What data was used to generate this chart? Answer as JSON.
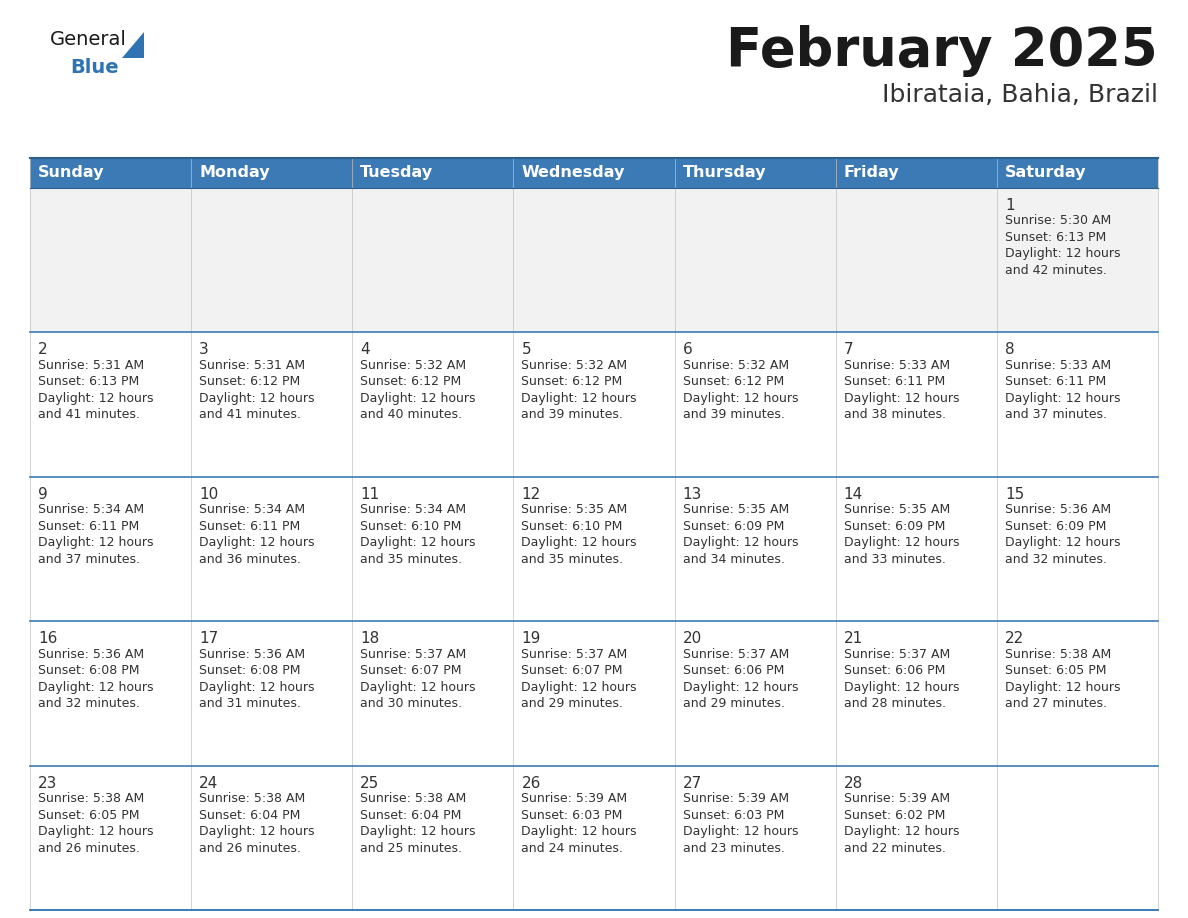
{
  "title": "February 2025",
  "subtitle": "Ibirataia, Bahia, Brazil",
  "header_bg": "#3c7ab5",
  "header_text_color": "#ffffff",
  "cell_bg_normal": "#ffffff",
  "cell_bg_first_row": "#f2f2f2",
  "border_color": "#2e5f8a",
  "row_divider_color": "#3c7ab5",
  "day_headers": [
    "Sunday",
    "Monday",
    "Tuesday",
    "Wednesday",
    "Thursday",
    "Friday",
    "Saturday"
  ],
  "days": [
    {
      "day": 1,
      "col": 6,
      "row": 0,
      "sunrise": "5:30 AM",
      "sunset": "6:13 PM",
      "minutes": "42 minutes."
    },
    {
      "day": 2,
      "col": 0,
      "row": 1,
      "sunrise": "5:31 AM",
      "sunset": "6:13 PM",
      "minutes": "41 minutes."
    },
    {
      "day": 3,
      "col": 1,
      "row": 1,
      "sunrise": "5:31 AM",
      "sunset": "6:12 PM",
      "minutes": "41 minutes."
    },
    {
      "day": 4,
      "col": 2,
      "row": 1,
      "sunrise": "5:32 AM",
      "sunset": "6:12 PM",
      "minutes": "40 minutes."
    },
    {
      "day": 5,
      "col": 3,
      "row": 1,
      "sunrise": "5:32 AM",
      "sunset": "6:12 PM",
      "minutes": "39 minutes."
    },
    {
      "day": 6,
      "col": 4,
      "row": 1,
      "sunrise": "5:32 AM",
      "sunset": "6:12 PM",
      "minutes": "39 minutes."
    },
    {
      "day": 7,
      "col": 5,
      "row": 1,
      "sunrise": "5:33 AM",
      "sunset": "6:11 PM",
      "minutes": "38 minutes."
    },
    {
      "day": 8,
      "col": 6,
      "row": 1,
      "sunrise": "5:33 AM",
      "sunset": "6:11 PM",
      "minutes": "37 minutes."
    },
    {
      "day": 9,
      "col": 0,
      "row": 2,
      "sunrise": "5:34 AM",
      "sunset": "6:11 PM",
      "minutes": "37 minutes."
    },
    {
      "day": 10,
      "col": 1,
      "row": 2,
      "sunrise": "5:34 AM",
      "sunset": "6:11 PM",
      "minutes": "36 minutes."
    },
    {
      "day": 11,
      "col": 2,
      "row": 2,
      "sunrise": "5:34 AM",
      "sunset": "6:10 PM",
      "minutes": "35 minutes."
    },
    {
      "day": 12,
      "col": 3,
      "row": 2,
      "sunrise": "5:35 AM",
      "sunset": "6:10 PM",
      "minutes": "35 minutes."
    },
    {
      "day": 13,
      "col": 4,
      "row": 2,
      "sunrise": "5:35 AM",
      "sunset": "6:09 PM",
      "minutes": "34 minutes."
    },
    {
      "day": 14,
      "col": 5,
      "row": 2,
      "sunrise": "5:35 AM",
      "sunset": "6:09 PM",
      "minutes": "33 minutes."
    },
    {
      "day": 15,
      "col": 6,
      "row": 2,
      "sunrise": "5:36 AM",
      "sunset": "6:09 PM",
      "minutes": "32 minutes."
    },
    {
      "day": 16,
      "col": 0,
      "row": 3,
      "sunrise": "5:36 AM",
      "sunset": "6:08 PM",
      "minutes": "32 minutes."
    },
    {
      "day": 17,
      "col": 1,
      "row": 3,
      "sunrise": "5:36 AM",
      "sunset": "6:08 PM",
      "minutes": "31 minutes."
    },
    {
      "day": 18,
      "col": 2,
      "row": 3,
      "sunrise": "5:37 AM",
      "sunset": "6:07 PM",
      "minutes": "30 minutes."
    },
    {
      "day": 19,
      "col": 3,
      "row": 3,
      "sunrise": "5:37 AM",
      "sunset": "6:07 PM",
      "minutes": "29 minutes."
    },
    {
      "day": 20,
      "col": 4,
      "row": 3,
      "sunrise": "5:37 AM",
      "sunset": "6:06 PM",
      "minutes": "29 minutes."
    },
    {
      "day": 21,
      "col": 5,
      "row": 3,
      "sunrise": "5:37 AM",
      "sunset": "6:06 PM",
      "minutes": "28 minutes."
    },
    {
      "day": 22,
      "col": 6,
      "row": 3,
      "sunrise": "5:38 AM",
      "sunset": "6:05 PM",
      "minutes": "27 minutes."
    },
    {
      "day": 23,
      "col": 0,
      "row": 4,
      "sunrise": "5:38 AM",
      "sunset": "6:05 PM",
      "minutes": "26 minutes."
    },
    {
      "day": 24,
      "col": 1,
      "row": 4,
      "sunrise": "5:38 AM",
      "sunset": "6:04 PM",
      "minutes": "26 minutes."
    },
    {
      "day": 25,
      "col": 2,
      "row": 4,
      "sunrise": "5:38 AM",
      "sunset": "6:04 PM",
      "minutes": "25 minutes."
    },
    {
      "day": 26,
      "col": 3,
      "row": 4,
      "sunrise": "5:39 AM",
      "sunset": "6:03 PM",
      "minutes": "24 minutes."
    },
    {
      "day": 27,
      "col": 4,
      "row": 4,
      "sunrise": "5:39 AM",
      "sunset": "6:03 PM",
      "minutes": "23 minutes."
    },
    {
      "day": 28,
      "col": 5,
      "row": 4,
      "sunrise": "5:39 AM",
      "sunset": "6:02 PM",
      "minutes": "22 minutes."
    }
  ],
  "num_rows": 5,
  "logo_triangle_color": "#2e74b5",
  "title_fontsize": 38,
  "subtitle_fontsize": 18,
  "header_fontsize": 11.5,
  "day_num_fontsize": 11,
  "cell_text_fontsize": 9
}
